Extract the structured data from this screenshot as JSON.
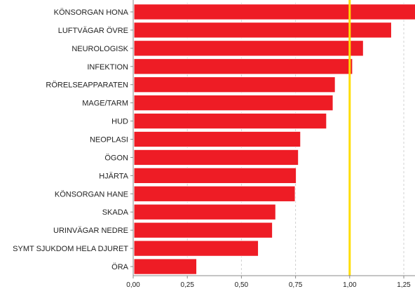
{
  "chart_data": {
    "type": "bar",
    "orientation": "horizontal",
    "categories": [
      "KÖNSORGAN HONA",
      "LUFTVÄGAR ÖVRE",
      "NEUROLOGISK",
      "INFEKTION",
      "RÖRELSEAPPARATEN",
      "MAGE/TARM",
      "HUD",
      "NEOPLASI",
      "ÖGON",
      "HJÄRTA",
      "KÖNSORGAN HANE",
      "SKADA",
      "URINVÄGAR NEDRE",
      "SYMT SJUKDOM HELA DJURET",
      "ÖRA"
    ],
    "values": [
      1.31,
      1.19,
      1.06,
      1.01,
      0.93,
      0.92,
      0.89,
      0.77,
      0.76,
      0.75,
      0.745,
      0.655,
      0.64,
      0.575,
      0.29
    ],
    "xlim": [
      0,
      1.3
    ],
    "xticks": [
      "0,00",
      "0,25",
      "0,50",
      "0,75",
      "1,00",
      "1,25"
    ],
    "xtick_values": [
      0,
      0.25,
      0.5,
      0.75,
      1.0,
      1.25
    ],
    "reference_line": 1.0,
    "grid": "vertical dashed",
    "colors": {
      "bar": "#ee1c25",
      "bar_border": "#ffffff",
      "reference_line": "#ffdd00",
      "grid": "#d0d0d0",
      "axis": "#888888"
    }
  }
}
